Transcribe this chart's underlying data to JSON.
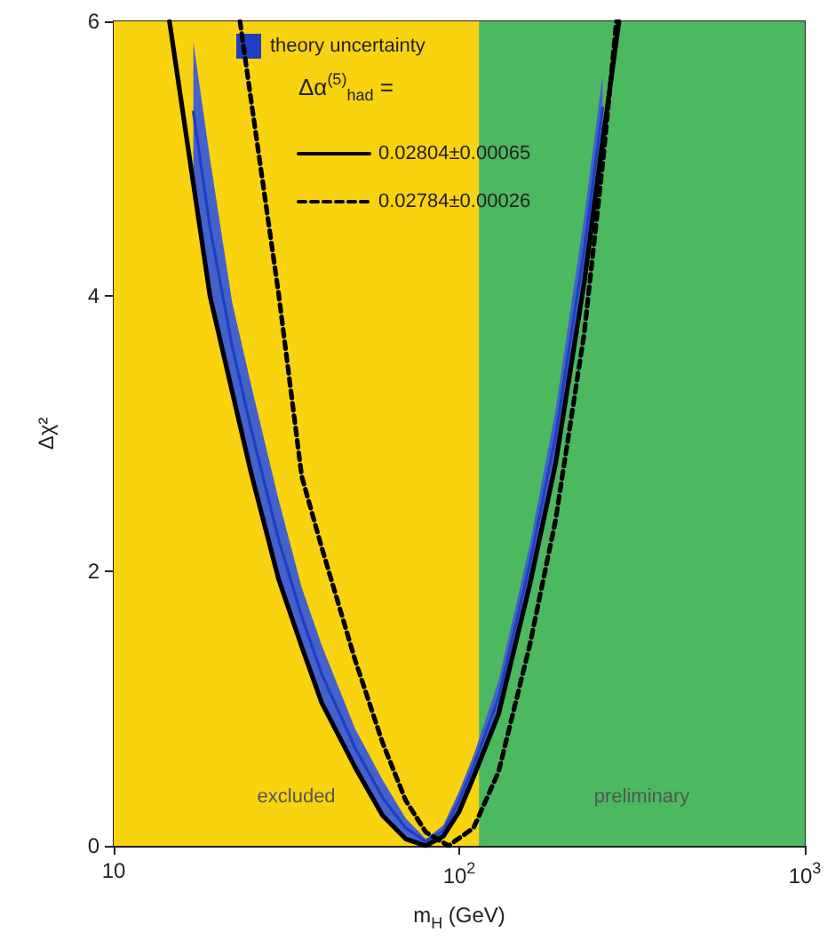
{
  "chart_data": {
    "type": "line",
    "xlabel": "m$_{H}$ (GeV)",
    "ylabel": "Δχ²",
    "legend_title": "Δα$^{(5)}$$_{had}$ =",
    "log": "x",
    "grid": false,
    "legend": "top left",
    "marker": "none",
    "xlim": [
      10,
      1000
    ],
    "xticks": [
      {
        "value": 10,
        "label": "10"
      },
      {
        "value": 100,
        "label": "10$^{2}$"
      },
      {
        "value": 1000,
        "label": "10$^{3}$"
      }
    ],
    "ylim": [
      0,
      6
    ],
    "yticks": [
      0,
      2,
      4,
      6
    ],
    "bands": [
      {
        "axis": "x",
        "from": 10,
        "to": 114,
        "label": "excluded",
        "color": "#f9d210"
      },
      {
        "axis": "x",
        "from": 114,
        "to": 1000,
        "label": "preliminary",
        "color": "#4cb860"
      }
    ],
    "series": [
      {
        "name": "theory uncertainty",
        "type": "line",
        "color": "#1d3fc2",
        "x": [
          17,
          19,
          22,
          25,
          30,
          35,
          40,
          50,
          60,
          70,
          80,
          90,
          100,
          110,
          130,
          160,
          190,
          230,
          260
        ],
        "lower": [
          4.82,
          4.0,
          3.31,
          2.71,
          1.94,
          1.45,
          1.04,
          0.57,
          0.22,
          0.05,
          0,
          0.07,
          0.25,
          0.5,
          0.96,
          1.9,
          2.78,
          4.1,
          5.13
        ],
        "upper": [
          5.85,
          5.0,
          3.96,
          3.35,
          2.52,
          1.88,
          1.46,
          0.85,
          0.48,
          0.2,
          0.05,
          0.15,
          0.4,
          0.66,
          1.2,
          2.19,
          3.17,
          4.58,
          5.61
        ],
        "values": [
          5.34,
          4.5,
          3.64,
          3.03,
          2.23,
          1.67,
          1.25,
          0.71,
          0.35,
          0.13,
          0.03,
          0.11,
          0.33,
          0.58,
          1.08,
          2.05,
          2.98,
          4.34,
          5.37
        ]
      },
      {
        "name": "0.02804±0.00065",
        "type": "line",
        "line_style": "solid",
        "color": "#000000",
        "x": [
          14.5,
          17,
          19,
          22,
          25,
          30,
          35,
          40,
          50,
          60,
          70,
          80,
          90,
          100,
          110,
          130,
          160,
          190,
          230,
          260,
          290
        ],
        "values": [
          6.0,
          4.82,
          4.0,
          3.31,
          2.71,
          1.94,
          1.45,
          1.04,
          0.57,
          0.22,
          0.05,
          0,
          0.07,
          0.25,
          0.5,
          0.96,
          1.9,
          2.78,
          4.1,
          5.13,
          6.0
        ]
      },
      {
        "name": "0.02784±0.00026",
        "type": "line",
        "line_style": "dashed",
        "color": "#000000",
        "x": [
          23.2,
          25,
          30,
          35,
          40,
          50,
          60,
          70,
          80,
          93,
          110,
          130,
          160,
          190,
          230,
          260,
          285
        ],
        "values": [
          6.0,
          5.42,
          4.02,
          2.69,
          2.17,
          1.35,
          0.75,
          0.33,
          0.1,
          0,
          0.13,
          0.54,
          1.46,
          2.37,
          3.73,
          4.96,
          6.0
        ]
      }
    ]
  }
}
